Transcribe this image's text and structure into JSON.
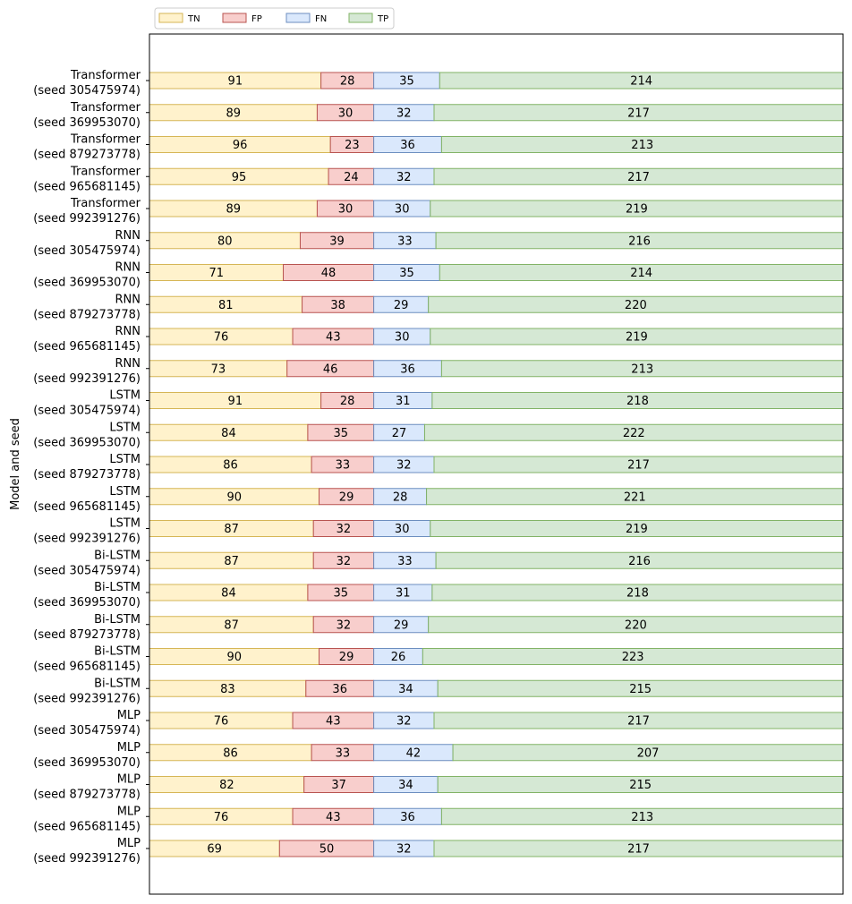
{
  "chart_data": {
    "type": "bar",
    "orientation": "horizontal",
    "stacked": true,
    "ylabel": "Model and seed",
    "xlabel": "",
    "xlim": [
      0,
      368
    ],
    "legend": {
      "placement": "top-left (above plot)",
      "entries": [
        "TN",
        "FP",
        "FN",
        "TP"
      ]
    },
    "colors": {
      "TN": {
        "fill": "#fff2cc",
        "edge": "#d6b656"
      },
      "FP": {
        "fill": "#f8cecc",
        "edge": "#b85450"
      },
      "FN": {
        "fill": "#dae8fc",
        "edge": "#6c8ebf"
      },
      "TP": {
        "fill": "#d5e8d4",
        "edge": "#82b366"
      }
    },
    "categories": [
      [
        "Transformer",
        "(seed 305475974)"
      ],
      [
        "Transformer",
        "(seed 369953070)"
      ],
      [
        "Transformer",
        "(seed 879273778)"
      ],
      [
        "Transformer",
        "(seed 965681145)"
      ],
      [
        "Transformer",
        "(seed 992391276)"
      ],
      [
        "RNN",
        "(seed 305475974)"
      ],
      [
        "RNN",
        "(seed 369953070)"
      ],
      [
        "RNN",
        "(seed 879273778)"
      ],
      [
        "RNN",
        "(seed 965681145)"
      ],
      [
        "RNN",
        "(seed 992391276)"
      ],
      [
        "LSTM",
        "(seed 305475974)"
      ],
      [
        "LSTM",
        "(seed 369953070)"
      ],
      [
        "LSTM",
        "(seed 879273778)"
      ],
      [
        "LSTM",
        "(seed 965681145)"
      ],
      [
        "LSTM",
        "(seed 992391276)"
      ],
      [
        "Bi-LSTM",
        "(seed 305475974)"
      ],
      [
        "Bi-LSTM",
        "(seed 369953070)"
      ],
      [
        "Bi-LSTM",
        "(seed 879273778)"
      ],
      [
        "Bi-LSTM",
        "(seed 965681145)"
      ],
      [
        "Bi-LSTM",
        "(seed 992391276)"
      ],
      [
        "MLP",
        "(seed 305475974)"
      ],
      [
        "MLP",
        "(seed 369953070)"
      ],
      [
        "MLP",
        "(seed 879273778)"
      ],
      [
        "MLP",
        "(seed 965681145)"
      ],
      [
        "MLP",
        "(seed 992391276)"
      ]
    ],
    "series": [
      {
        "name": "TN",
        "values": [
          91,
          89,
          96,
          95,
          89,
          80,
          71,
          81,
          76,
          73,
          91,
          84,
          86,
          90,
          87,
          87,
          84,
          87,
          90,
          83,
          76,
          86,
          82,
          76,
          69
        ]
      },
      {
        "name": "FP",
        "values": [
          28,
          30,
          23,
          24,
          30,
          39,
          48,
          38,
          43,
          46,
          28,
          35,
          33,
          29,
          32,
          32,
          35,
          32,
          29,
          36,
          43,
          33,
          37,
          43,
          50
        ]
      },
      {
        "name": "FN",
        "values": [
          35,
          32,
          36,
          32,
          30,
          33,
          35,
          29,
          30,
          36,
          31,
          27,
          32,
          28,
          30,
          33,
          31,
          29,
          26,
          34,
          32,
          42,
          34,
          36,
          32
        ]
      },
      {
        "name": "TP",
        "values": [
          214,
          217,
          213,
          217,
          219,
          216,
          214,
          220,
          219,
          213,
          218,
          222,
          217,
          221,
          219,
          216,
          218,
          220,
          223,
          215,
          217,
          207,
          215,
          213,
          217
        ]
      }
    ]
  }
}
